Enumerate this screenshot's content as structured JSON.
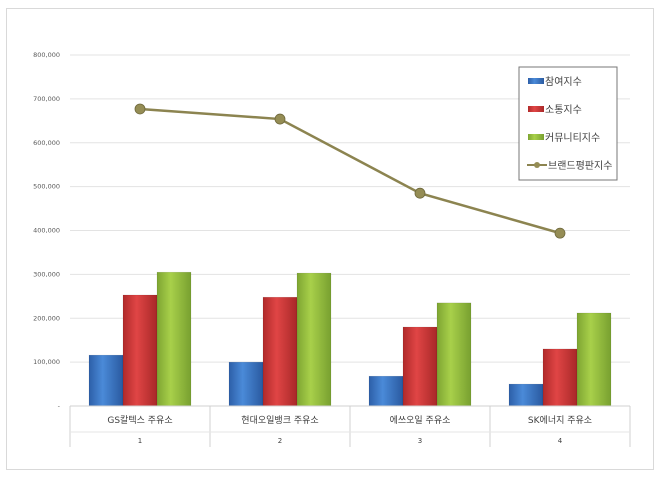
{
  "chart_data": {
    "type": "bar",
    "title": "",
    "xlabel": "",
    "ylabel": "",
    "ylim": [
      0,
      800000
    ],
    "yticks": [
      0,
      100000,
      200000,
      300000,
      400000,
      500000,
      600000,
      700000,
      800000
    ],
    "ytick_labels": [
      "-",
      "100,000",
      "200,000",
      "300,000",
      "400,000",
      "500,000",
      "600,000",
      "700,000",
      "800,000"
    ],
    "grid": true,
    "legend_position": "top-right",
    "categories": [
      "GS칼텍스 주유소",
      "현대오일뱅크 주유소",
      "에쓰오일 주유소",
      "SK에너지 주유소"
    ],
    "category_index": [
      "1",
      "2",
      "3",
      "4"
    ],
    "series": [
      {
        "name": "참여지수",
        "type": "bar",
        "color": "#3b78c9",
        "values": [
          116000,
          100000,
          68000,
          50000
        ]
      },
      {
        "name": "소통지수",
        "type": "bar",
        "color": "#d63a3a",
        "values": [
          253000,
          248000,
          180000,
          130000
        ]
      },
      {
        "name": "커뮤니티지수",
        "type": "bar",
        "color": "#9dc73f",
        "values": [
          305000,
          303000,
          235000,
          212000
        ]
      },
      {
        "name": "브랜드평판지수",
        "type": "line",
        "color": "#8c8450",
        "values": [
          677000,
          654000,
          485000,
          394000
        ]
      }
    ]
  }
}
